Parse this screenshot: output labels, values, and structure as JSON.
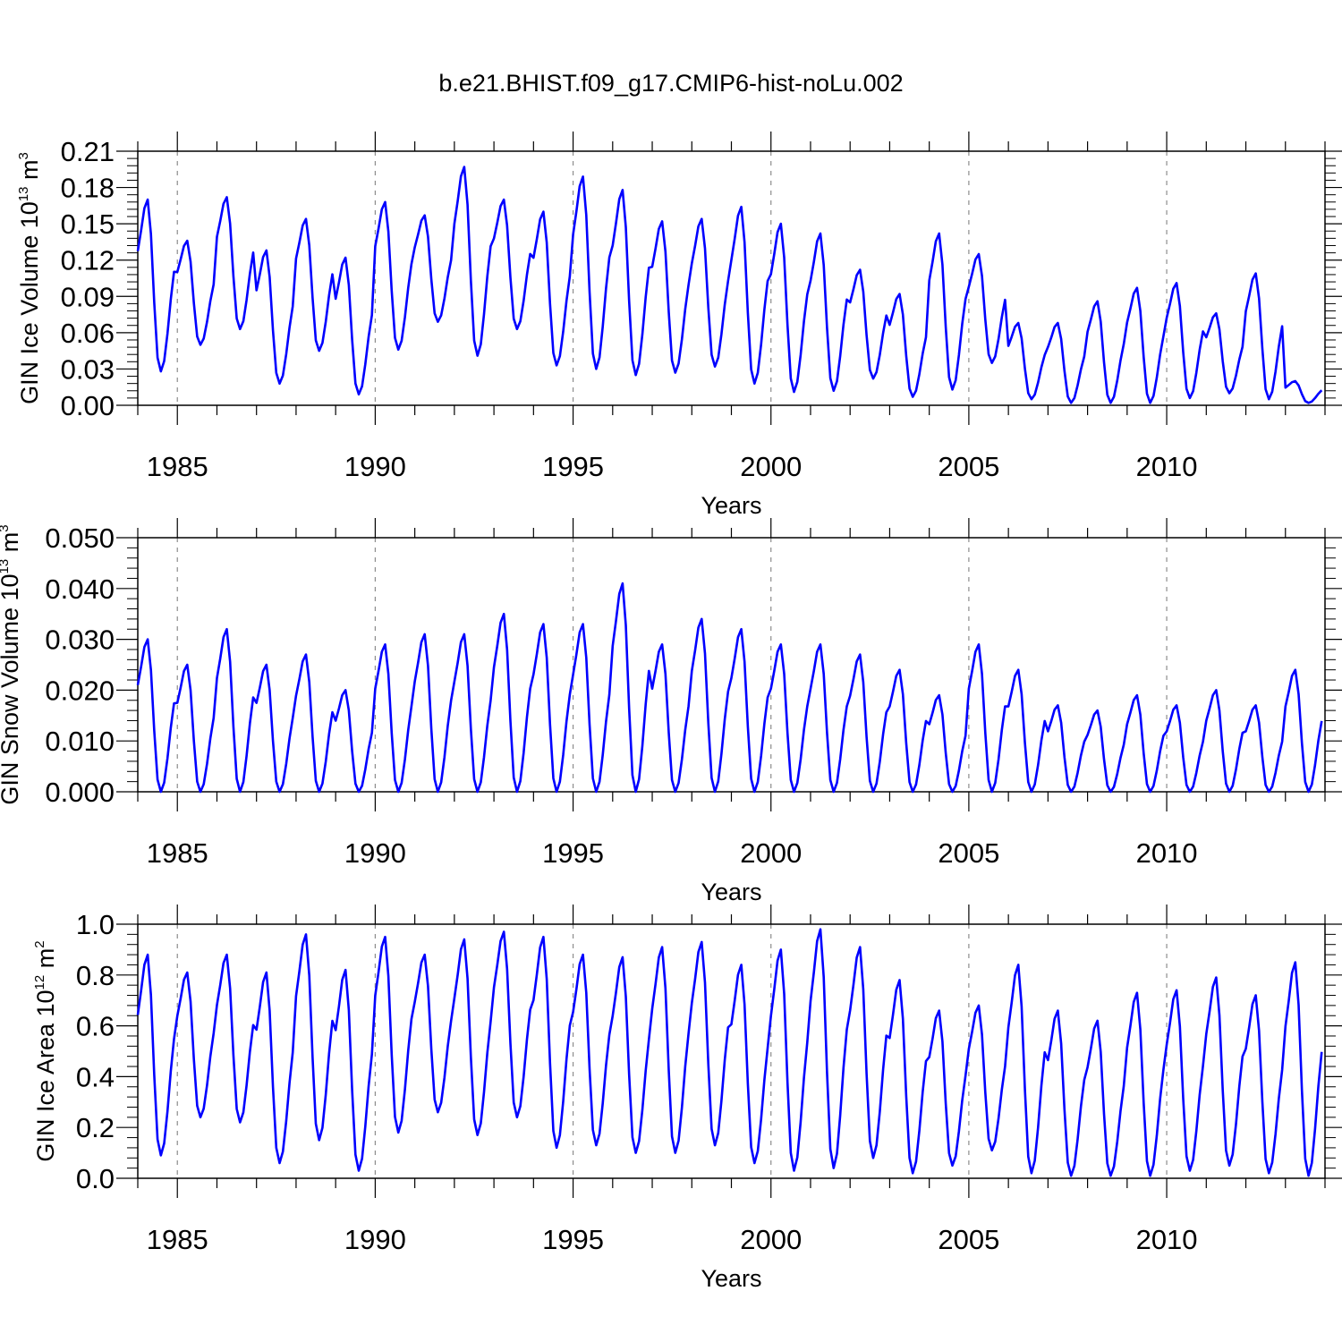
{
  "title": "b.e21.BHIST.f09_g17.CMIP6-hist-noLu.002",
  "colors": {
    "line": "#0000ff",
    "axes": "#000000",
    "grid": "#8c8c8c"
  },
  "chart_data": [
    {
      "type": "line",
      "name": "ice-volume",
      "ylabel_main": "GIN Ice Volume 10",
      "ylabel_exp": "13",
      "ylabel_unit": " m",
      "ylabel_unit_exp": "3",
      "xlabel": "Years",
      "xlim": [
        1984.0,
        2014.0
      ],
      "ylim": [
        0.0,
        0.21
      ],
      "x_ticks": [
        1985,
        1990,
        1995,
        2000,
        2005,
        2010
      ],
      "x_tick_labels": [
        "1985",
        "1990",
        "1995",
        "2000",
        "2005",
        "2010"
      ],
      "y_ticks": [
        0.0,
        0.03,
        0.06,
        0.09,
        0.12,
        0.15,
        0.18,
        0.21
      ],
      "y_tick_labels": [
        "0.00",
        "0.03",
        "0.06",
        "0.09",
        "0.12",
        "0.15",
        "0.18",
        "0.21"
      ],
      "grid": "dashed vertical at x ticks",
      "series": [
        {
          "name": "GIN Ice Volume",
          "annual_max": [
            0.17,
            0.136,
            0.172,
            0.128,
            0.154,
            0.122,
            0.168,
            0.157,
            0.197,
            0.17,
            0.16,
            0.189,
            0.178,
            0.152,
            0.154,
            0.164,
            0.15,
            0.142,
            0.112,
            0.092,
            0.142,
            0.125,
            0.068,
            0.068,
            0.086,
            0.097,
            0.101,
            0.076,
            0.109,
            0.02
          ],
          "annual_min": [
            0.028,
            0.05,
            0.063,
            0.018,
            0.045,
            0.009,
            0.046,
            0.069,
            0.041,
            0.063,
            0.033,
            0.03,
            0.025,
            0.027,
            0.032,
            0.018,
            0.011,
            0.012,
            0.022,
            0.007,
            0.013,
            0.035,
            0.005,
            0.002,
            0.002,
            0.002,
            0.006,
            0.01,
            0.005,
            0.002
          ]
        }
      ]
    },
    {
      "type": "line",
      "name": "snow-volume",
      "ylabel_main": "GIN Snow Volume 10",
      "ylabel_exp": "13",
      "ylabel_unit": " m",
      "ylabel_unit_exp": "3",
      "xlabel": "Years",
      "xlim": [
        1984.0,
        2014.0
      ],
      "ylim": [
        0.0,
        0.05
      ],
      "x_ticks": [
        1985,
        1990,
        1995,
        2000,
        2005,
        2010
      ],
      "x_tick_labels": [
        "1985",
        "1990",
        "1995",
        "2000",
        "2005",
        "2010"
      ],
      "y_ticks": [
        0.0,
        0.01,
        0.02,
        0.03,
        0.04,
        0.05
      ],
      "y_tick_labels": [
        "0.000",
        "0.010",
        "0.020",
        "0.030",
        "0.040",
        "0.050"
      ],
      "grid": "dashed vertical at x ticks",
      "series": [
        {
          "name": "GIN Snow Volume",
          "annual_max": [
            0.03,
            0.025,
            0.032,
            0.025,
            0.027,
            0.02,
            0.029,
            0.031,
            0.031,
            0.035,
            0.033,
            0.033,
            0.041,
            0.029,
            0.034,
            0.032,
            0.029,
            0.029,
            0.027,
            0.024,
            0.019,
            0.029,
            0.024,
            0.017,
            0.016,
            0.019,
            0.017,
            0.02,
            0.017,
            0.024
          ],
          "annual_min": [
            0.0,
            0.0,
            0.0,
            0.0,
            0.0,
            0.0,
            0.0,
            0.0,
            0.0,
            0.0,
            0.0,
            0.0,
            0.0,
            0.0,
            0.0,
            0.0,
            0.0,
            0.0,
            0.0,
            0.0,
            0.0,
            0.0,
            0.0,
            0.0,
            0.0,
            0.0,
            0.0,
            0.0,
            0.0,
            0.0
          ]
        }
      ]
    },
    {
      "type": "line",
      "name": "ice-area",
      "ylabel_main": "GIN Ice Area 10",
      "ylabel_exp": "12",
      "ylabel_unit": " m",
      "ylabel_unit_exp": "2",
      "xlabel": "Years",
      "xlim": [
        1984.0,
        2014.0
      ],
      "ylim": [
        0.0,
        1.0
      ],
      "x_ticks": [
        1985,
        1990,
        1995,
        2000,
        2005,
        2010
      ],
      "x_tick_labels": [
        "1985",
        "1990",
        "1995",
        "2000",
        "2005",
        "2010"
      ],
      "y_ticks": [
        0.0,
        0.2,
        0.4,
        0.6,
        0.8,
        1.0
      ],
      "y_tick_labels": [
        "0.0",
        "0.2",
        "0.4",
        "0.6",
        "0.8",
        "1.0"
      ],
      "grid": "dashed vertical at x ticks",
      "series": [
        {
          "name": "GIN Ice Area",
          "annual_max": [
            0.88,
            0.81,
            0.88,
            0.81,
            0.96,
            0.82,
            0.95,
            0.88,
            0.94,
            0.97,
            0.95,
            0.88,
            0.87,
            0.91,
            0.93,
            0.84,
            0.9,
            0.98,
            0.91,
            0.78,
            0.66,
            0.68,
            0.84,
            0.66,
            0.62,
            0.73,
            0.74,
            0.79,
            0.72,
            0.85
          ],
          "annual_min": [
            0.09,
            0.24,
            0.22,
            0.06,
            0.15,
            0.03,
            0.18,
            0.26,
            0.17,
            0.24,
            0.12,
            0.13,
            0.1,
            0.1,
            0.13,
            0.06,
            0.03,
            0.04,
            0.08,
            0.02,
            0.05,
            0.11,
            0.02,
            0.01,
            0.01,
            0.01,
            0.03,
            0.05,
            0.02,
            0.01
          ]
        }
      ]
    }
  ]
}
